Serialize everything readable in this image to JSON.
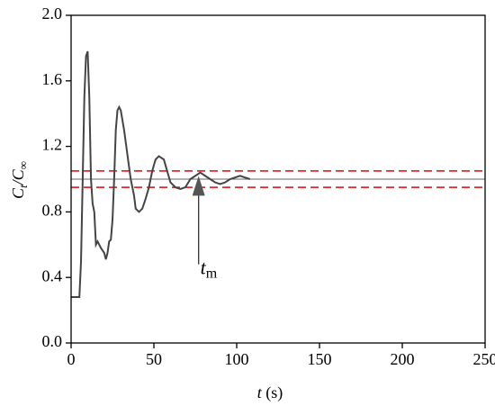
{
  "chart_data": {
    "type": "line",
    "xlabel": {
      "italic": "t",
      "rest": " (s)"
    },
    "ylabel": {
      "c1": "C",
      "sub1": "t",
      "mid": "/C",
      "sub2": "∞"
    },
    "xlim": [
      0,
      250
    ],
    "xticks": [
      0,
      50,
      100,
      150,
      200,
      250
    ],
    "ylim": [
      0,
      2
    ],
    "yticks": [
      {
        "value": 0,
        "label": "0.0"
      },
      0.4,
      0.8,
      1.2,
      1.6,
      {
        "value": 2,
        "label": "2.0"
      }
    ],
    "series": [
      {
        "color": "#444444",
        "x": [
          0,
          5,
          6,
          7,
          8,
          9,
          10,
          11,
          12,
          13,
          14,
          15,
          16,
          18,
          20,
          21,
          22,
          23,
          24,
          25,
          26,
          27,
          28,
          29,
          30,
          32,
          34,
          36,
          38,
          39,
          41,
          43,
          45,
          47,
          49,
          51,
          53,
          56,
          58,
          60,
          63,
          66,
          69,
          72,
          75,
          78,
          81,
          84,
          87,
          90,
          93,
          96,
          99,
          102,
          105,
          108
        ],
        "values": [
          0.28,
          0.28,
          0.5,
          1.0,
          1.5,
          1.75,
          1.78,
          1.5,
          1.0,
          0.85,
          0.8,
          0.6,
          0.62,
          0.58,
          0.55,
          0.51,
          0.55,
          0.62,
          0.63,
          0.75,
          1.0,
          1.3,
          1.42,
          1.44,
          1.42,
          1.3,
          1.15,
          1.0,
          0.9,
          0.82,
          0.8,
          0.82,
          0.88,
          0.95,
          1.05,
          1.12,
          1.14,
          1.12,
          1.05,
          0.98,
          0.95,
          0.94,
          0.95,
          1.0,
          1.02,
          1.04,
          1.02,
          1.0,
          0.98,
          0.97,
          0.98,
          1.0,
          1.01,
          1.02,
          1.01,
          1.0
        ]
      }
    ],
    "hlines": [
      {
        "value": 1.05,
        "color": "#e8262b",
        "dashed": true
      },
      {
        "value": 0.95,
        "color": "#e8262b",
        "dashed": true
      },
      {
        "value": 1.0,
        "color": "#666666",
        "dashed": false
      }
    ],
    "annotation": {
      "text": "t",
      "subscript": "m",
      "x": 77,
      "y_from": 0.48,
      "y_to": 1.02
    }
  }
}
